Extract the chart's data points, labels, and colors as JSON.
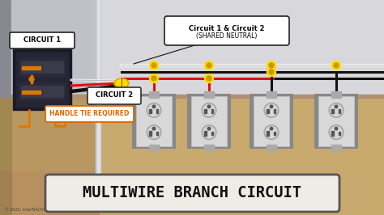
{
  "bg_wall_color": "#d8d8dc",
  "bg_left_strip": "#888890",
  "bg_panel_wall": "#c0c0c8",
  "bg_floor_color": "#c8a96e",
  "bg_floor_dark": "#b89858",
  "title_text": "MULTIWIRE BRANCH CIRCUIT",
  "title_box_color": "#eeece4",
  "title_box_border": "#555555",
  "copyright_text": "© 2022, InterNACHI",
  "label_circuit1": "CIRCUIT 1",
  "label_circuit2": "CIRCUIT 2",
  "label_shared_line1": "Circuit 1 & Circuit 2",
  "label_shared_line2": "(SHARED NEUTRAL)",
  "label_handle": "HANDLE TIE REQUIRED",
  "wire_black": "#111111",
  "wire_red": "#dd1111",
  "wire_white": "#e8e8e8",
  "wire_yellow_cap": "#ddaa00",
  "wire_orange": "#dd7700",
  "outlet_body": "#d8d8d8",
  "outlet_gray": "#aaaaaa",
  "outlet_dark": "#888888",
  "panel_color": "#1a1a28",
  "panel_face": "#252535",
  "node_yellow": "#ffdd00",
  "node_yellow_dark": "#cc9900",
  "label_bg": "#ffffff",
  "label_border": "#222222",
  "handle_label_color": "#dd6600",
  "handle_border_color": "#dd6600",
  "wall_divider_light": "#d0d0d8",
  "wall_divider_dark": "#909098"
}
